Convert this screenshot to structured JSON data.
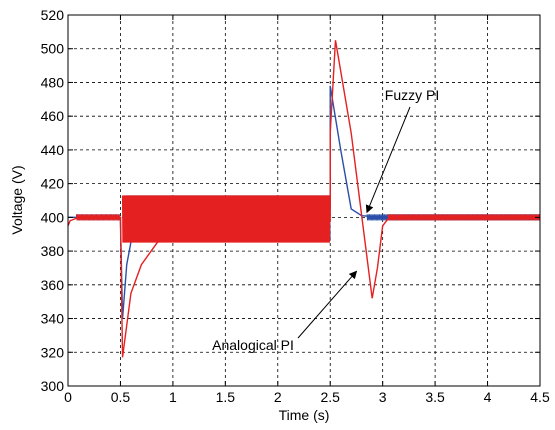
{
  "chart_data": {
    "type": "line",
    "title": "",
    "xlabel": "Time (s)",
    "ylabel": "Voltage (V)",
    "xlim": [
      0,
      4.5
    ],
    "ylim": [
      300,
      520
    ],
    "xticks": [
      0,
      0.5,
      1,
      1.5,
      2,
      2.5,
      3,
      3.5,
      4,
      4.5
    ],
    "yticks": [
      300,
      320,
      340,
      360,
      380,
      400,
      420,
      440,
      460,
      480,
      500,
      520
    ],
    "xtick_labels": [
      "0",
      "0.5",
      "1",
      "1.5",
      "2",
      "2.5",
      "3",
      "3.5",
      "4",
      "4.5"
    ],
    "ytick_labels": [
      "300",
      "320",
      "340",
      "360",
      "380",
      "400",
      "420",
      "440",
      "460",
      "480",
      "500",
      "520"
    ],
    "grid": true,
    "legend": "none",
    "series": [
      {
        "name": "Fuzzy PI",
        "color": "#2b4fa8",
        "x": [
          0,
          0.5,
          0.5,
          0.52,
          0.56,
          0.62,
          0.7,
          0.8,
          1.0,
          1.5,
          2.0,
          2.49,
          2.5,
          2.5,
          2.6,
          2.7,
          2.8,
          3.0,
          3.5,
          4.0,
          4.5
        ],
        "y": [
          400,
          400,
          399,
          340,
          372,
          392,
          402,
          405,
          405,
          405,
          405,
          405,
          405,
          478,
          440,
          405,
          401,
          400,
          400,
          400,
          400
        ],
        "ripple_band": {
          "x_start": 0.55,
          "x_end": 2.5,
          "low": 386,
          "high": 413
        }
      },
      {
        "name": "Analogical PI",
        "color": "#e52020",
        "x": [
          0,
          0.02,
          0.1,
          0.5,
          0.5,
          0.52,
          0.6,
          0.7,
          0.85,
          1.0,
          1.3,
          1.5,
          2.0,
          2.49,
          2.5,
          2.5,
          2.55,
          2.7,
          2.9,
          2.95,
          3.0,
          3.05,
          3.2,
          3.5,
          4.0,
          4.5
        ],
        "y": [
          395,
          398,
          400,
          400,
          399,
          317,
          355,
          372,
          385,
          392,
          396,
          397,
          398,
          398,
          398,
          450,
          505,
          450,
          352,
          370,
          395,
          399,
          400,
          400,
          400,
          400
        ],
        "ripple_band": {
          "x_start": 0.52,
          "x_end": 2.5,
          "low": 385,
          "high": 413
        }
      }
    ],
    "annotations": [
      {
        "text": "Fuzzy PI",
        "points_to_x": 2.85,
        "points_to_y": 403
      },
      {
        "text": "Analogical PI",
        "points_to_x": 2.75,
        "points_to_y": 368
      }
    ]
  }
}
